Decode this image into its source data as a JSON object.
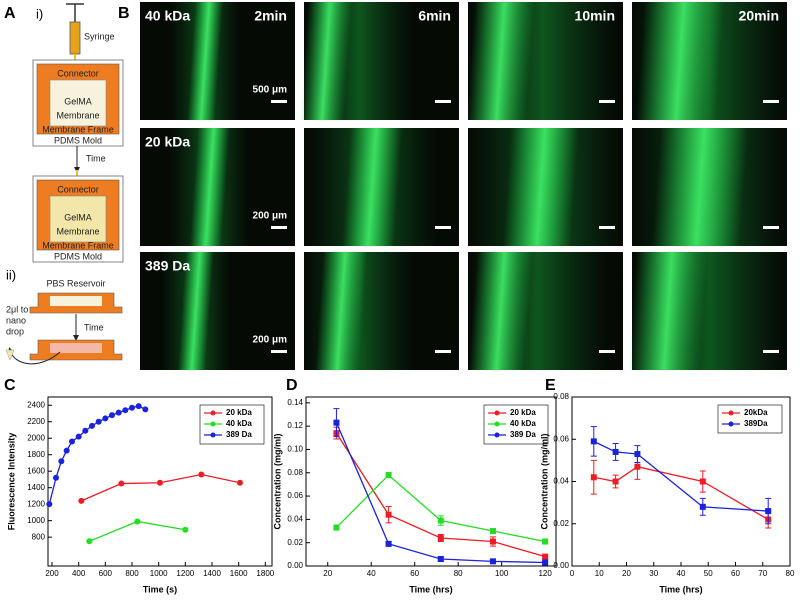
{
  "panels": [
    "A",
    "B",
    "C",
    "D",
    "E"
  ],
  "diagram": {
    "step1": "i)",
    "syringe": "Syringe",
    "connector": "Connector",
    "gelma": "GelMA",
    "membrane": "Membrane",
    "frame": "Membrane Frame",
    "mold": "PDMS Mold",
    "time": "Time",
    "step2": "ii)",
    "reservoir": "PBS Reservoir",
    "drop": [
      "2μl to",
      "nano",
      "drop"
    ]
  },
  "microscopy": {
    "rows": [
      "40 kDa",
      "20 kDa",
      "389 Da"
    ],
    "columns": [
      "2min",
      "6min",
      "10min",
      "20min"
    ],
    "scale_bars": [
      "500 μm",
      "200 μm",
      "200 μm"
    ]
  },
  "chart_data": [
    {
      "type": "line",
      "x_label": "Time (s)",
      "y_label": "Fluorescence Intensity",
      "xlim": [
        170,
        1850
      ],
      "ylim": [
        450,
        2500
      ],
      "xticks": [
        200,
        400,
        600,
        800,
        1000,
        1200,
        1400,
        1600,
        1800
      ],
      "yticks": [
        800,
        1000,
        1200,
        1400,
        1600,
        1800,
        2000,
        2200,
        2400
      ],
      "legend": "upper right",
      "series": [
        {
          "name": "20 kDa",
          "color": "#ee1c24",
          "x": [
            420,
            720,
            1010,
            1320,
            1610
          ],
          "values": [
            1240,
            1450,
            1460,
            1560,
            1460
          ]
        },
        {
          "name": "40 kDa",
          "color": "#22dd22",
          "x": [
            480,
            840,
            1200
          ],
          "values": [
            750,
            990,
            890
          ]
        },
        {
          "name": "389 Da",
          "color": "#1a22dd",
          "x": [
            180,
            230,
            270,
            310,
            350,
            400,
            450,
            500,
            550,
            600,
            650,
            700,
            750,
            800,
            850,
            900
          ],
          "values": [
            1200,
            1520,
            1720,
            1850,
            1960,
            2020,
            2090,
            2150,
            2200,
            2240,
            2280,
            2310,
            2340,
            2370,
            2390,
            2350
          ]
        }
      ]
    },
    {
      "type": "line",
      "x_label": "Time (hrs)",
      "y_label": "Concentration (mg/ml)",
      "xlim": [
        10,
        125
      ],
      "ylim": [
        0,
        0.145
      ],
      "xticks": [
        20,
        40,
        60,
        80,
        100,
        120
      ],
      "yticks": [
        {
          "value": 0,
          "label": "0.00"
        },
        0.02,
        0.04,
        0.06,
        0.08,
        {
          "value": 0.1,
          "label": "0.10"
        },
        0.12,
        0.14
      ],
      "legend": "upper right",
      "x": [
        24,
        48,
        72,
        96,
        120
      ],
      "series": [
        {
          "name": "20 kDa",
          "color": "#ee1c24",
          "values": [
            0.114,
            0.044,
            0.024,
            0.021,
            0.008
          ],
          "errors": [
            0.005,
            0.007,
            0.003,
            0.004,
            0.002
          ]
        },
        {
          "name": "40 kDa",
          "color": "#22dd22",
          "values": [
            0.033,
            0.078,
            0.039,
            0.03,
            0.021
          ],
          "errors": [
            0.002,
            0.002,
            0.004,
            0.002,
            0.002
          ]
        },
        {
          "name": "389 Da",
          "color": "#1a22dd",
          "values": [
            0.123,
            0.019,
            0.006,
            0.004,
            0.003
          ],
          "errors": [
            0.012,
            0.002,
            0.002,
            0.001,
            0.001
          ]
        }
      ]
    },
    {
      "type": "line",
      "x_label": "Time (hrs)",
      "y_label": "Concentration (mg/ml)",
      "xlim": [
        0,
        80
      ],
      "ylim": [
        0,
        0.08
      ],
      "xticks": [
        0,
        10,
        20,
        30,
        40,
        50,
        60,
        70,
        80
      ],
      "yticks": [
        {
          "value": 0,
          "label": "0.00"
        },
        0.02,
        0.04,
        0.06,
        0.08
      ],
      "legend": "upper right",
      "x": [
        8,
        16,
        24,
        48,
        72
      ],
      "series": [
        {
          "name": "20kDa",
          "color": "#ee1c24",
          "values": [
            0.042,
            0.04,
            0.047,
            0.04,
            0.022
          ],
          "errors": [
            0.008,
            0.003,
            0.006,
            0.005,
            0.004
          ]
        },
        {
          "name": "389Da",
          "color": "#1a22dd",
          "values": [
            0.059,
            0.054,
            0.053,
            0.028,
            0.026
          ],
          "errors": [
            0.007,
            0.004,
            0.004,
            0.004,
            0.006
          ]
        }
      ]
    }
  ]
}
